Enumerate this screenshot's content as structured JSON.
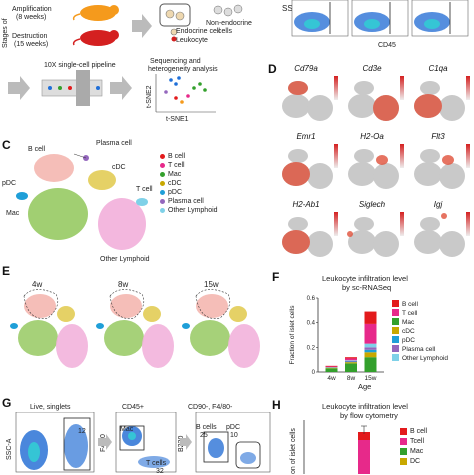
{
  "panels": {
    "A": {
      "stages_label": "Stages of",
      "amplification": "Amplification",
      "amp_weeks": "(8 weeks)",
      "destruction": "Destruction",
      "des_weeks": "(15 weeks)",
      "non_endocrine": "Non-endocrine",
      "cells": "cells",
      "endocrine_cell": "Endocrine cell",
      "leukocyte": "Leukocyte",
      "pipeline": "10X single-cell pipeline",
      "seq1": "Sequencing and",
      "seq2": "heterogeneity analysis",
      "tsne1": "t-SNE1",
      "tsne2": "t-SNE2"
    },
    "B": {
      "ylabel": "SS",
      "xlabel": "CD45"
    },
    "C": {
      "label": "C",
      "clusters": [
        "B cell",
        "Plasma cell",
        "cDC",
        "pDC",
        "Mac",
        "T cell",
        "Other Lymphoid"
      ],
      "legend": [
        {
          "name": "B cell",
          "color": "#e31a1c"
        },
        {
          "name": "T cell",
          "color": "#e7298a"
        },
        {
          "name": "Mac",
          "color": "#33a02c"
        },
        {
          "name": "cDC",
          "color": "#c8a800"
        },
        {
          "name": "pDC",
          "color": "#1f9fd8"
        },
        {
          "name": "Plasma cell",
          "color": "#9467bd"
        },
        {
          "name": "Other Lymphoid",
          "color": "#7fd1e8"
        }
      ]
    },
    "D": {
      "label": "D",
      "genes": [
        "Cd79a",
        "Cd3e",
        "C1qa",
        "Emr1",
        "H2-Oa",
        "Flt3",
        "H2-Ab1",
        "Siglech",
        "Igj"
      ]
    },
    "E": {
      "label": "E",
      "timepoints": [
        "4w",
        "8w",
        "15w"
      ]
    },
    "F": {
      "label": "F",
      "title1": "Leukocyte infiltration level",
      "title2": "by sc-RNASeq",
      "ylabel": "Fraction of islet cells",
      "xlabel": "Age",
      "yticks": [
        "0",
        "0.2",
        "0.4",
        "0.6"
      ]
    },
    "G": {
      "label": "G",
      "live": "Live, singlets",
      "cd45": "CD45+",
      "gate3": "CD90-, F4/80-",
      "ssc": "SSC-A",
      "f480": "F4/80",
      "b220": "B220",
      "mac": "Mac",
      "tcells": "T cells",
      "bcells": "B cells",
      "pdc": "pDC",
      "num_mac": "12",
      "num_t": "32",
      "num_b": "25",
      "num_pdc": "10"
    },
    "H": {
      "label": "H",
      "title1": "Leukocyte infiltration level",
      "title2": "by flow cytometry",
      "ylabel": "on of islet cells",
      "legend": [
        {
          "name": "B cell",
          "color": "#e31a1c"
        },
        {
          "name": "Tcell",
          "color": "#e7298a"
        },
        {
          "name": "Mac",
          "color": "#33a02c"
        },
        {
          "name": "DC",
          "color": "#c8a800"
        }
      ]
    }
  },
  "chart_data": {
    "type": "bar",
    "categories": [
      "4w",
      "8w",
      "15w"
    ],
    "series": [
      {
        "name": "B cell",
        "values": [
          0.005,
          0.01,
          0.1
        ],
        "color": "#e31a1c"
      },
      {
        "name": "T cell",
        "values": [
          0.005,
          0.015,
          0.16
        ],
        "color": "#e7298a"
      },
      {
        "name": "Mac",
        "values": [
          0.03,
          0.07,
          0.12
        ],
        "color": "#33a02c"
      },
      {
        "name": "cDC",
        "values": [
          0.005,
          0.01,
          0.04
        ],
        "color": "#c8a800"
      },
      {
        "name": "pDC",
        "values": [
          0.002,
          0.005,
          0.02
        ],
        "color": "#1f9fd8"
      },
      {
        "name": "Plasma cell",
        "values": [
          0.002,
          0.005,
          0.02
        ],
        "color": "#9467bd"
      },
      {
        "name": "Other Lymphoid",
        "values": [
          0.001,
          0.005,
          0.03
        ],
        "color": "#7fd1e8"
      }
    ],
    "ylim": [
      0,
      0.6
    ],
    "ylabel": "Fraction of islet cells",
    "xlabel": "Age",
    "legend_placement": "right"
  }
}
